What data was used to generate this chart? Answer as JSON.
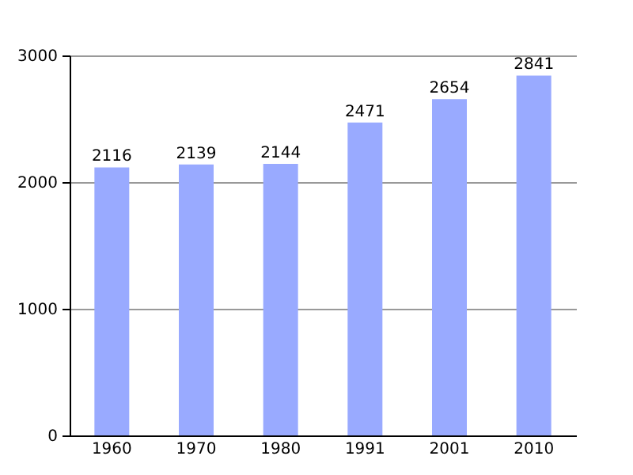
{
  "chart_data": {
    "type": "bar",
    "categories": [
      "1960",
      "1970",
      "1980",
      "1991",
      "2001",
      "2010"
    ],
    "values": [
      2116,
      2139,
      2144,
      2471,
      2654,
      2841
    ],
    "color": "#99aaff",
    "ylim": [
      0,
      3000
    ],
    "yticks": [
      0,
      1000,
      2000,
      3000
    ],
    "grid": "y",
    "data_labels": true
  }
}
